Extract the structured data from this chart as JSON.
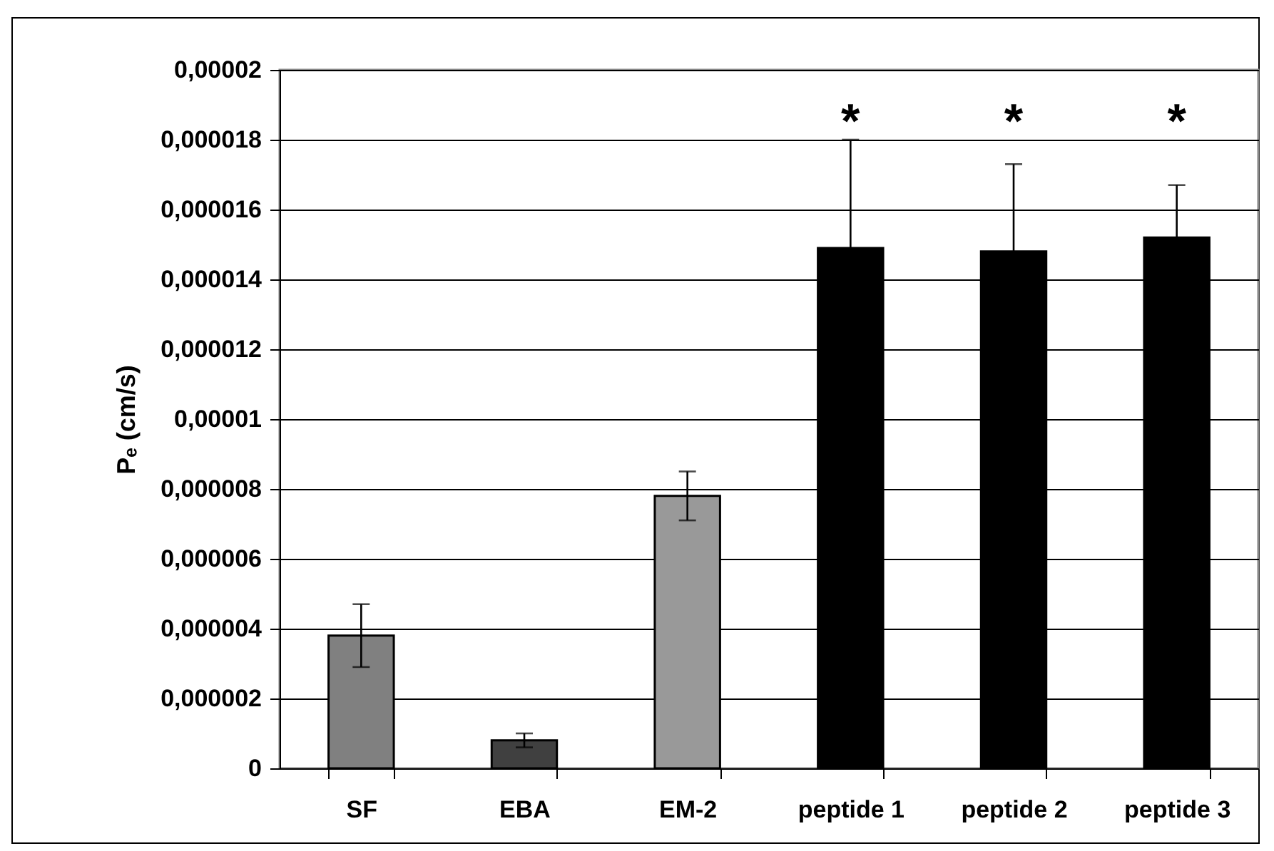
{
  "chart_data": {
    "type": "bar",
    "ylabel": "Pₑ (cm/s)",
    "categories": [
      "SF",
      "EBA",
      "EM-2",
      "peptide 1",
      "peptide 2",
      "peptide 3"
    ],
    "values": [
      3.8e-06,
      8e-07,
      7.8e-06,
      1.49e-05,
      1.48e-05,
      1.52e-05
    ],
    "errors": [
      9e-07,
      2e-07,
      7e-07,
      3.1e-06,
      2.5e-06,
      1.5e-06
    ],
    "colors": [
      "#808080",
      "#404040",
      "#999999",
      "#000000",
      "#000000",
      "#000000"
    ],
    "ylim": [
      0,
      2e-05
    ],
    "yticks": [
      {
        "value": 0,
        "label": "0"
      },
      {
        "value": 2e-06,
        "label": "0,000002"
      },
      {
        "value": 4e-06,
        "label": "0,000004"
      },
      {
        "value": 6e-06,
        "label": "0,000006"
      },
      {
        "value": 8e-06,
        "label": "0,000008"
      },
      {
        "value": 1e-05,
        "label": "0,00001"
      },
      {
        "value": 1.2e-05,
        "label": "0,000012"
      },
      {
        "value": 1.4e-05,
        "label": "0,000014"
      },
      {
        "value": 1.6e-05,
        "label": "0,000016"
      },
      {
        "value": 1.8e-05,
        "label": "0,000018"
      },
      {
        "value": 2e-05,
        "label": "0,00002"
      }
    ],
    "annotations": [
      "*",
      "*",
      "*"
    ],
    "grid": "y",
    "legend": false
  }
}
